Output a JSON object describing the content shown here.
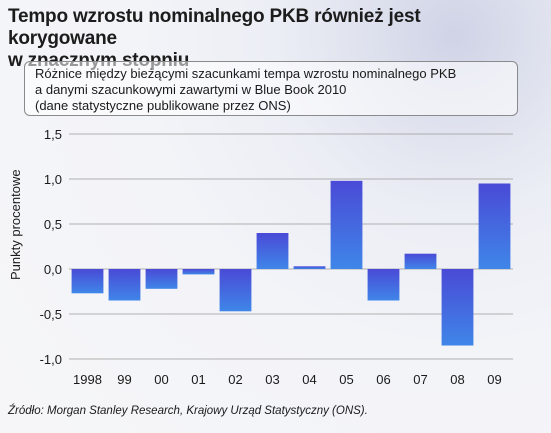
{
  "title_line1": "Tempo wzrostu nominalnego PKB również jest korygowane",
  "title_line2": "w znacznym stopniu",
  "subtitle_line1": "Różnice między bieżącymi szacunkami tempa wzrostu nominalnego PKB",
  "subtitle_line2": "a danymi szacunkowymi zawartymi w Blue Book 2010",
  "subtitle_line3": "(dane statystyczne publikowane przez ONS)",
  "source": "Źródło: Morgan Stanley Research, Krajowy Urząd Statystyczny (ONS).",
  "chart_data": {
    "type": "bar",
    "title": "",
    "xlabel": "",
    "ylabel": "Punkty procentowe",
    "ylim": [
      -1.0,
      1.5
    ],
    "yticks": [
      -1.0,
      -0.5,
      0.0,
      0.5,
      1.0,
      1.5
    ],
    "ytick_labels": [
      "-1,0",
      "-0,5",
      "0,0",
      "0,5",
      "1,0",
      "1,5"
    ],
    "grid": "horizontal",
    "categories": [
      "1998",
      "99",
      "00",
      "01",
      "02",
      "03",
      "04",
      "05",
      "06",
      "07",
      "08",
      "09"
    ],
    "values": [
      -0.27,
      -0.35,
      -0.22,
      -0.06,
      -0.47,
      0.4,
      0.03,
      0.98,
      -0.35,
      0.17,
      -0.85,
      0.95
    ],
    "bar_color_top": "#4a4ad6",
    "bar_color_bottom": "#3f86e8"
  }
}
